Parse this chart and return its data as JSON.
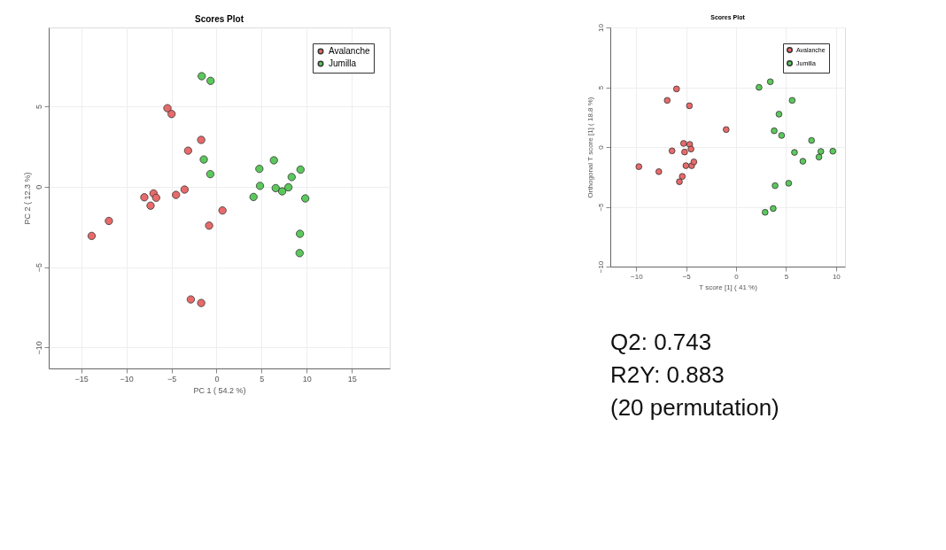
{
  "chart_data": [
    {
      "type": "scatter",
      "title": "Scores Plot",
      "xlabel": "PC 1 ( 54.2 %)",
      "ylabel": "PC 2 ( 12.3 %)",
      "xlim": [
        -18.6,
        19.2
      ],
      "ylim": [
        -11.3,
        9.9
      ],
      "xticks": [
        -15,
        -10,
        -5,
        0,
        5,
        10,
        15
      ],
      "yticks": [
        -10,
        -5,
        0,
        5
      ],
      "grid": true,
      "legend": "top right",
      "marker": "circle",
      "series": [
        {
          "name": "Avalanche",
          "color": "#e86a6a",
          "x": [
            -5.44,
            -4.98,
            -1.7,
            -3.15,
            -3.54,
            -4.49,
            -6.98,
            -8.0,
            -6.69,
            -7.31,
            -11.93,
            -13.84,
            0.66,
            -0.82,
            -2.85,
            -1.7
          ],
          "values": [
            4.88,
            4.52,
            2.91,
            2.24,
            -0.18,
            -0.51,
            -0.42,
            -0.66,
            -0.69,
            -1.18,
            -2.13,
            -3.06,
            -1.48,
            -2.42,
            -7.01,
            -7.23
          ]
        },
        {
          "name": "Jumilla",
          "color": "#5cc85c",
          "x": [
            -1.64,
            -0.66,
            -1.41,
            -0.69,
            4.75,
            6.36,
            9.31,
            8.33,
            4.82,
            6.56,
            7.28,
            7.97,
            4.1,
            9.84,
            9.25,
            9.21
          ],
          "values": [
            6.87,
            6.58,
            1.69,
            0.78,
            1.11,
            1.64,
            1.06,
            0.6,
            0.05,
            -0.09,
            -0.29,
            -0.04,
            -0.64,
            -0.73,
            -2.93,
            -4.13
          ]
        }
      ]
    },
    {
      "type": "scatter",
      "title": "Scores Plot",
      "xlabel": "T score [1] ( 41 %)",
      "ylabel": "Orthogonal T score [1] ( 18.8 %)",
      "xlim": [
        -12.6,
        10.9
      ],
      "ylim": [
        -10,
        10
      ],
      "xticks": [
        -10,
        -5,
        0,
        5,
        10
      ],
      "yticks": [
        -10,
        -5,
        0,
        5,
        10
      ],
      "grid": true,
      "legend": "top right",
      "marker": "circle",
      "series": [
        {
          "name": "Avalanche",
          "color": "#e86a6a",
          "x": [
            -5.97,
            -6.9,
            -4.68,
            -1.0,
            -5.26,
            -4.65,
            -4.52,
            -5.16,
            -6.42,
            -9.74,
            -7.74,
            -5.03,
            -4.45,
            -4.23,
            -5.39,
            -5.68
          ],
          "values": [
            4.86,
            3.9,
            3.45,
            1.46,
            0.3,
            0.22,
            -0.17,
            -0.42,
            -0.32,
            -1.64,
            -2.06,
            -1.56,
            -1.56,
            -1.24,
            -2.46,
            -2.9
          ]
        },
        {
          "name": "Jumilla",
          "color": "#5cc85c",
          "x": [
            2.29,
            3.42,
            5.61,
            4.29,
            3.81,
            4.55,
            7.55,
            5.84,
            6.68,
            8.48,
            8.29,
            9.68,
            5.26,
            3.9,
            3.71,
            2.9
          ],
          "values": [
            4.99,
            5.46,
            3.9,
            2.75,
            1.36,
            0.97,
            0.55,
            -0.45,
            -1.19,
            -0.37,
            -0.84,
            -0.35,
            -3.03,
            -3.23,
            -5.14,
            -5.46
          ]
        }
      ]
    },
    {
      "type": "other",
      "annotations": [
        "Q2: 0.743",
        "R2Y: 0.883",
        "(20 permutation)"
      ]
    }
  ]
}
